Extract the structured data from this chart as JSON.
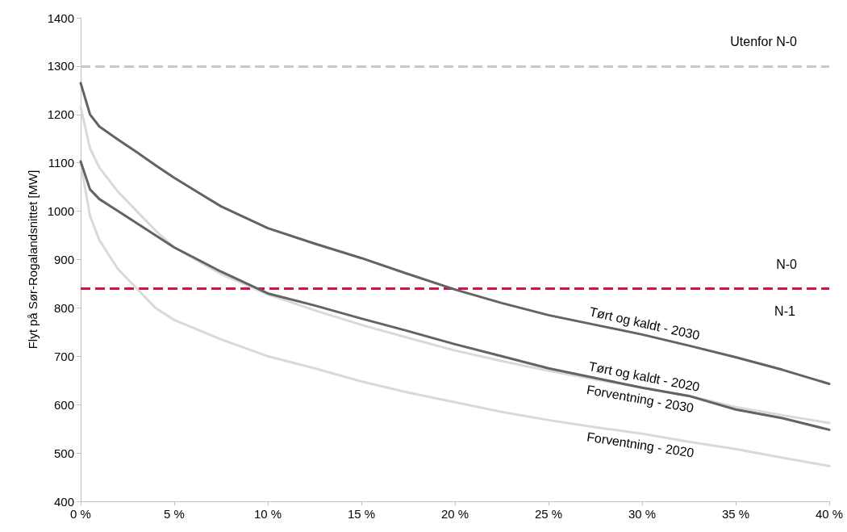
{
  "chart_data": {
    "type": "line",
    "ylabel": "Flyt på Sør-Rogalandsnittet [MW]",
    "x": [
      0,
      0.5,
      1,
      2,
      3,
      4,
      5,
      7.5,
      10,
      12.5,
      15,
      17.5,
      20,
      22.5,
      25,
      27.5,
      30,
      32.5,
      35,
      37.5,
      40
    ],
    "series": [
      {
        "name": "Tørt og kaldt - 2030",
        "color": "#636363",
        "values": [
          1265,
          1200,
          1175,
          1148,
          1122,
          1095,
          1069,
          1010,
          965,
          933,
          903,
          870,
          838,
          810,
          785,
          765,
          745,
          722,
          698,
          672,
          643
        ]
      },
      {
        "name": "Tørt og kaldt - 2020",
        "color": "#636363",
        "values": [
          1103,
          1045,
          1025,
          1000,
          975,
          950,
          925,
          875,
          830,
          805,
          778,
          752,
          725,
          700,
          675,
          655,
          635,
          618,
          590,
          572,
          548
        ]
      },
      {
        "name": "Forventning - 2030",
        "color": "#d9d9d9",
        "values": [
          1215,
          1130,
          1090,
          1040,
          1000,
          960,
          925,
          870,
          828,
          795,
          765,
          738,
          712,
          690,
          670,
          652,
          635,
          618,
          595,
          578,
          562
        ]
      },
      {
        "name": "Forventning - 2020",
        "color": "#d9d9d9",
        "values": [
          1100,
          990,
          940,
          880,
          840,
          800,
          775,
          735,
          700,
          675,
          648,
          625,
          605,
          585,
          568,
          553,
          540,
          523,
          508,
          490,
          473
        ]
      }
    ],
    "xlim": [
      0,
      40
    ],
    "xticks": [
      {
        "value": 0,
        "label": "0 %"
      },
      {
        "value": 5,
        "label": "5 %"
      },
      {
        "value": 10,
        "label": "10 %"
      },
      {
        "value": 15,
        "label": "15 %"
      },
      {
        "value": 20,
        "label": "20 %"
      },
      {
        "value": 25,
        "label": "25 %"
      },
      {
        "value": 30,
        "label": "30 %"
      },
      {
        "value": 35,
        "label": "35 %"
      },
      {
        "value": 40,
        "label": "40 %"
      }
    ],
    "ylim": [
      400,
      1400
    ],
    "yticks": [
      400,
      500,
      600,
      700,
      800,
      900,
      1000,
      1100,
      1200,
      1300,
      1400
    ],
    "grid": false,
    "marker": "none",
    "line_style": "solid",
    "ref_lines": [
      {
        "axis": "y",
        "value": 1300,
        "label": "Utenfor N-0",
        "color": "#c8c8c8",
        "line_style": "dashed"
      },
      {
        "axis": "y",
        "value": 840,
        "label": "N-0",
        "color": "#d4143c",
        "line_style": "dashed"
      }
    ],
    "annotations": [
      "N-1"
    ]
  }
}
